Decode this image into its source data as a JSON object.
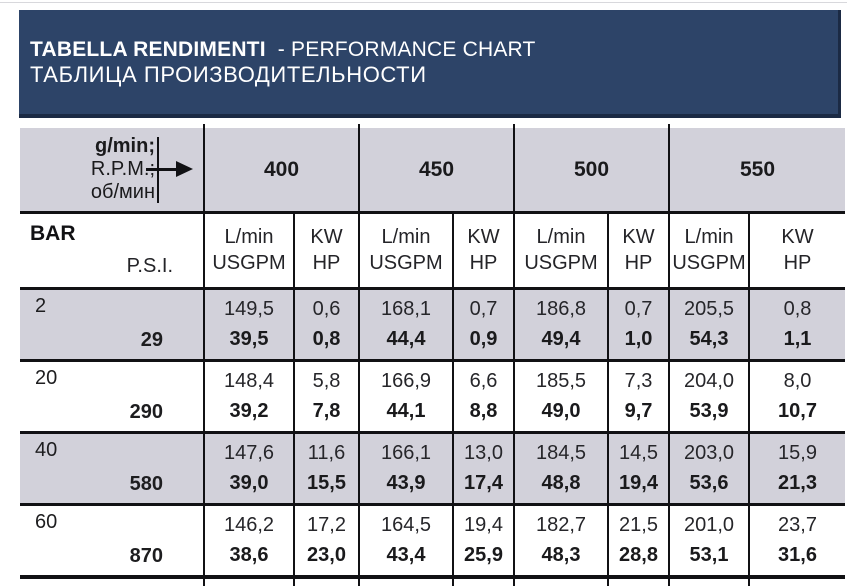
{
  "banner": {
    "title_it": "TABELLA RENDIMENTI",
    "title_en": "- PERFORMANCE CHART",
    "title_ru": "ТАБЛИЦА ПРОИЗВОДИТЕЛЬНОСТИ"
  },
  "colors": {
    "banner_bg": "#2d4468",
    "banner_edge": "#1b2a44",
    "row_shade": "#d2d1da",
    "grid_line": "#111114",
    "text": "#1d1d1f"
  },
  "table": {
    "corner": {
      "l1": "g/min;",
      "l2": "R.P.M.;",
      "l3": "об/мин"
    },
    "speeds": [
      "400",
      "450",
      "500",
      "550"
    ],
    "units": {
      "flow_top": "L/min",
      "flow_bottom": "USGPM",
      "power_top": "KW",
      "power_bottom": "HP"
    },
    "pressure_header": {
      "bar": "BAR",
      "psi": "P.S.I."
    },
    "rows": [
      {
        "bar": "2",
        "psi": "29",
        "groups": [
          {
            "lmin": "149,5",
            "usgpm": "39,5",
            "kw": "0,6",
            "hp": "0,8"
          },
          {
            "lmin": "168,1",
            "usgpm": "44,4",
            "kw": "0,7",
            "hp": "0,9"
          },
          {
            "lmin": "186,8",
            "usgpm": "49,4",
            "kw": "0,7",
            "hp": "1,0"
          },
          {
            "lmin": "205,5",
            "usgpm": "54,3",
            "kw": "0,8",
            "hp": "1,1"
          }
        ]
      },
      {
        "bar": "20",
        "psi": "290",
        "groups": [
          {
            "lmin": "148,4",
            "usgpm": "39,2",
            "kw": "5,8",
            "hp": "7,8"
          },
          {
            "lmin": "166,9",
            "usgpm": "44,1",
            "kw": "6,6",
            "hp": "8,8"
          },
          {
            "lmin": "185,5",
            "usgpm": "49,0",
            "kw": "7,3",
            "hp": "9,7"
          },
          {
            "lmin": "204,0",
            "usgpm": "53,9",
            "kw": "8,0",
            "hp": "10,7"
          }
        ]
      },
      {
        "bar": "40",
        "psi": "580",
        "groups": [
          {
            "lmin": "147,6",
            "usgpm": "39,0",
            "kw": "11,6",
            "hp": "15,5"
          },
          {
            "lmin": "166,1",
            "usgpm": "43,9",
            "kw": "13,0",
            "hp": "17,4"
          },
          {
            "lmin": "184,5",
            "usgpm": "48,8",
            "kw": "14,5",
            "hp": "19,4"
          },
          {
            "lmin": "203,0",
            "usgpm": "53,6",
            "kw": "15,9",
            "hp": "21,3"
          }
        ]
      },
      {
        "bar": "60",
        "psi": "870",
        "groups": [
          {
            "lmin": "146,2",
            "usgpm": "38,6",
            "kw": "17,2",
            "hp": "23,0"
          },
          {
            "lmin": "164,5",
            "usgpm": "43,4",
            "kw": "19,4",
            "hp": "25,9"
          },
          {
            "lmin": "182,7",
            "usgpm": "48,3",
            "kw": "21,5",
            "hp": "28,8"
          },
          {
            "lmin": "201,0",
            "usgpm": "53,1",
            "kw": "23,7",
            "hp": "31,6"
          }
        ]
      }
    ]
  }
}
